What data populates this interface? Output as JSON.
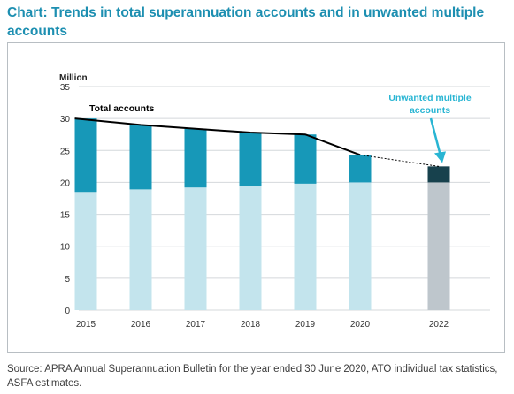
{
  "title": "Chart: Trends in total superannuation accounts and in unwanted multiple accounts",
  "source": "Source: APRA Annual Superannuation Bulletin for the year ended 30 June 2020, ATO individual tax statistics, ASFA estimates.",
  "colors": {
    "title": "#1d8fb1",
    "base_light_blue": "#c3e4ed",
    "unwanted_teal": "#1798b8",
    "base_2022_grey": "#bec6cc",
    "unwanted_2022_dark": "#17414d",
    "line": "#000000",
    "annotation": "#29b5d3"
  },
  "chart_data": {
    "type": "bar",
    "stacked": true,
    "unit_label": "Million",
    "categories": [
      "2015",
      "2016",
      "2017",
      "2018",
      "2019",
      "2020",
      "2022"
    ],
    "ylim": [
      0,
      35
    ],
    "yticks": [
      "0",
      "5",
      "10",
      "15",
      "20",
      "25",
      "30",
      "35"
    ],
    "series": [
      {
        "values": [
          18.5,
          18.9,
          19.2,
          19.5,
          19.8,
          20.0,
          20.0
        ]
      },
      {
        "name": "Unwanted multiple accounts",
        "values": [
          11.5,
          10.1,
          9.2,
          8.3,
          7.7,
          4.3,
          2.5
        ]
      }
    ],
    "line": {
      "name": "Total accounts",
      "values": [
        30.0,
        29.0,
        28.4,
        27.8,
        27.5,
        24.3,
        22.5
      ],
      "projected_from_index": 5
    },
    "grid": true,
    "annotation": "Unwanted multiple accounts"
  }
}
